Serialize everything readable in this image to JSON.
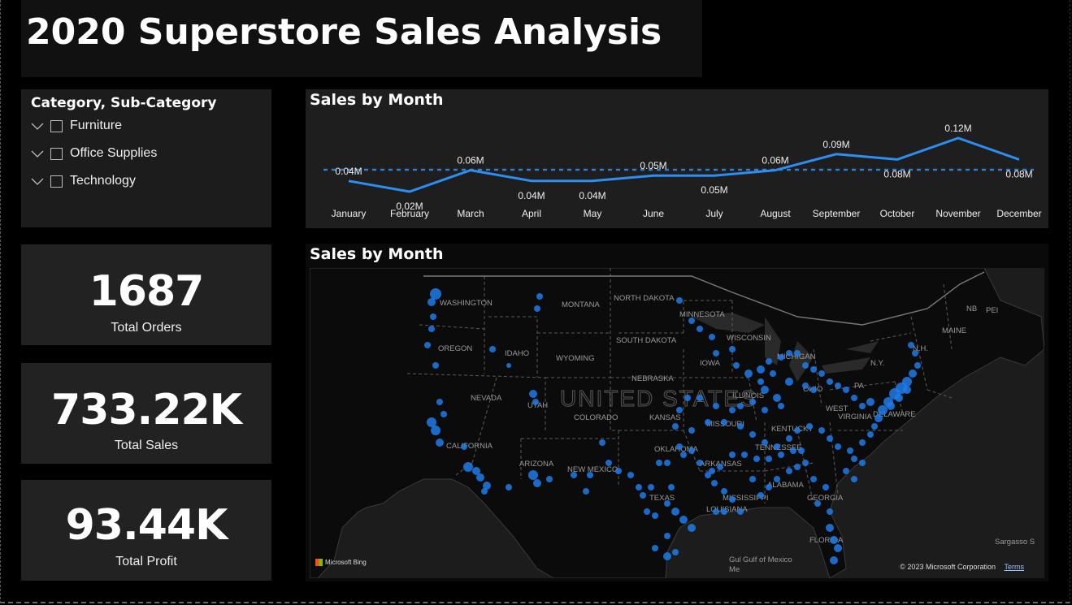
{
  "title": "2020 Superstore Sales Analysis",
  "slicer": {
    "header": "Category, Sub-Category",
    "items": [
      {
        "label": "Furniture"
      },
      {
        "label": "Office Supplies"
      },
      {
        "label": "Technology"
      }
    ]
  },
  "cards": {
    "orders": {
      "value": "1687",
      "caption": "Total Orders"
    },
    "sales": {
      "value": "733.22K",
      "caption": "Total Sales"
    },
    "profit": {
      "value": "93.44K",
      "caption": "Total Profit"
    }
  },
  "line_chart_title": "Sales by Month",
  "map_title": "Sales by Month",
  "chart_data": {
    "type": "line",
    "title": "Sales by Month",
    "categories": [
      "January",
      "February",
      "March",
      "April",
      "May",
      "June",
      "July",
      "August",
      "September",
      "October",
      "November",
      "December"
    ],
    "values": [
      0.04,
      0.02,
      0.06,
      0.04,
      0.04,
      0.05,
      0.05,
      0.06,
      0.09,
      0.08,
      0.12,
      0.08
    ],
    "data_labels": [
      "0.04M",
      "0.02M",
      "0.06M",
      "0.04M",
      "0.04M",
      "0.05M",
      "0.05M",
      "0.06M",
      "0.09M",
      "0.08M",
      "0.12M",
      "0.08M"
    ],
    "average_line": true,
    "line_color": "#2d8ef0"
  },
  "map": {
    "labels": {
      "washington": "WASHINGTON",
      "oregon": "OREGON",
      "idaho": "IDAHO",
      "montana": "MONTANA",
      "wyoming": "WYOMING",
      "nevada": "NEVADA",
      "utah": "UTAH",
      "california": "CALIFORNIA",
      "arizona": "ARIZONA",
      "colorado": "COLORADO",
      "new_mexico": "NEW MEXICO",
      "north_dakota": "NORTH DAKOTA",
      "south_dakota": "SOUTH DAKOTA",
      "nebraska": "NEBRASKA",
      "kansas": "KANSAS",
      "oklahoma": "OKLAHOMA",
      "texas": "TEXAS",
      "minnesota": "MINNESOTA",
      "iowa": "IOWA",
      "missouri": "MISSOURI",
      "arkansas": "ARKANSAS",
      "mississippi": "MISSISSIPPI",
      "louisiana": "LOUISIANA",
      "wisconsin": "WISCONSIN",
      "illinois": "ILLINOIS",
      "michigan": "MICHIGAN",
      "ohio": "OHIO",
      "kentucky": "KENTUCKY",
      "tennessee": "TENNESSEE",
      "alabama": "ALABAMA",
      "georgia": "GEORGIA",
      "florida": "FLORIDA",
      "virginia": "VIRGINIA",
      "west_virginia": "WEST\nVIRGINIA",
      "pa": "PA",
      "ny": "N.Y.",
      "maine": "MAINE",
      "nh": "N.H.",
      "delaware": "DELAWARE",
      "nb": "NB",
      "pei": "PEI",
      "united_states": "UNITED STATES",
      "gulf": "Gulf of Mexico",
      "sargasso": "Sargasso S",
      "gul": "Gul",
      "me": "Me"
    },
    "point_color": "#1f7bea",
    "bing": "Microsoft Bing",
    "copyright": "© 2023 Microsoft Corporation",
    "terms": "Terms"
  }
}
